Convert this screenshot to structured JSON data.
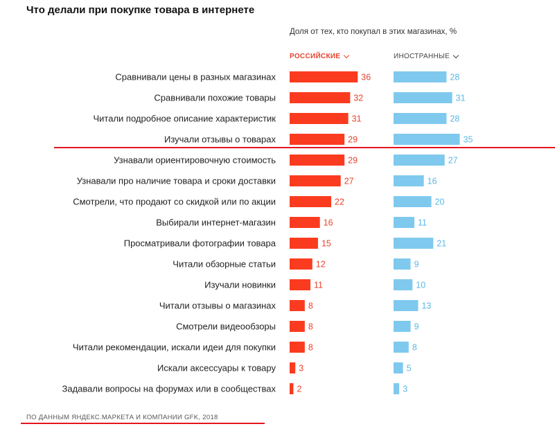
{
  "title": "Что делали при покупке товара в интернете",
  "subtitle": "Доля от тех, кто покупал в этих магазинах, %",
  "columns": {
    "russian": "РОССИЙСКИЕ",
    "foreign": "ИНОСТРАННЫЕ"
  },
  "source": "ПО ДАННЫМ ЯНДЕКС.МАРКЕТА И КОМПАНИИ GFK, 2018",
  "colors": {
    "russian": "#fb3b1f",
    "foreign": "#7fc9ee",
    "russian_label": "#e8432e",
    "foreign_label": "#5bb8e6",
    "annotation_line": "#e3141f"
  },
  "chart_data": {
    "type": "bar",
    "orientation": "horizontal",
    "categories": [
      "Сравнивали цены в разных магазинах",
      "Сравнивали похожие товары",
      "Читали подробное описание характеристик",
      "Изучали отзывы о товарах",
      "Узнавали ориентировочную стоимость",
      "Узнавали про наличие товара и сроки доставки",
      "Смотрели, что продают со скидкой или по акции",
      "Выбирали интернет-магазин",
      "Просматривали фотографии товара",
      "Читали обзорные статьи",
      "Изучали новинки",
      "Читали отзывы о магазинах",
      "Смотрели видеообзоры",
      "Читали рекомендации, искали идеи для покупки",
      "Искали аксессуары к товару",
      "Задавали вопросы на форумах или в сообществах"
    ],
    "series": [
      {
        "name": "РОССИЙСКИЕ",
        "values": [
          36,
          32,
          31,
          29,
          29,
          27,
          22,
          16,
          15,
          12,
          11,
          8,
          8,
          8,
          3,
          2
        ]
      },
      {
        "name": "ИНОСТРАННЫЕ",
        "values": [
          28,
          31,
          28,
          35,
          27,
          16,
          20,
          11,
          21,
          9,
          10,
          13,
          9,
          8,
          5,
          3
        ]
      }
    ],
    "unit": "%",
    "grid": false
  }
}
